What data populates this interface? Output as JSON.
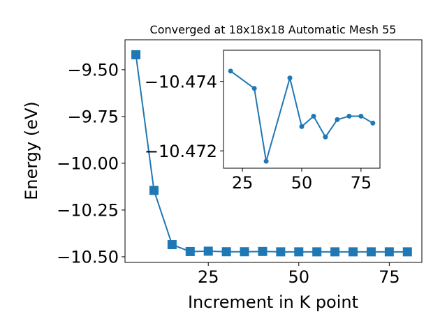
{
  "chart_data": [
    {
      "type": "line",
      "title": "Converged at 18x18x18 Automatic Mesh 55",
      "xlabel": "Increment in K point",
      "ylabel": "Energy (eV)",
      "xlim": [
        2,
        84
      ],
      "ylim": [
        -10.53,
        -9.34
      ],
      "xticks": [
        25,
        50,
        75
      ],
      "xtick_labels": [
        "25",
        "50",
        "75"
      ],
      "yticks": [
        -9.5,
        -9.75,
        -10.0,
        -10.25,
        -10.5
      ],
      "ytick_labels": [
        "−9.50",
        "−9.75",
        "−10.00",
        "−10.25",
        "−10.50"
      ],
      "marker": "square",
      "color": "#1f77b4",
      "grid": false,
      "series": [
        {
          "x": [
            5,
            10,
            15,
            20,
            25,
            30,
            35,
            40,
            45,
            50,
            55,
            60,
            65,
            70,
            75,
            80
          ],
          "values": [
            -9.42,
            -10.145,
            -10.435,
            -10.472,
            -10.47,
            -10.473,
            -10.473,
            -10.4715,
            -10.4735,
            -10.4735,
            -10.4735,
            -10.4735,
            -10.4735,
            -10.4735,
            -10.4735,
            -10.4735
          ]
        }
      ]
    },
    {
      "type": "line",
      "title": "",
      "xlabel": "",
      "ylabel": "",
      "xlim": [
        17,
        83
      ],
      "ylim": [
        -10.4715,
        -10.4749
      ],
      "xticks": [
        25,
        50,
        75
      ],
      "xtick_labels": [
        "25",
        "50",
        "75"
      ],
      "yticks": [
        -10.474,
        -10.472
      ],
      "ytick_labels": [
        "−10.474",
        "−10.472"
      ],
      "marker": "circle",
      "color": "#1f77b4",
      "grid": false,
      "series": [
        {
          "x": [
            20,
            30,
            35,
            45,
            50,
            55,
            60,
            65,
            70,
            75,
            80
          ],
          "values": [
            -10.4743,
            -10.4738,
            -10.4717,
            -10.4741,
            -10.4727,
            -10.473,
            -10.4724,
            -10.4729,
            -10.473,
            -10.473,
            -10.4728
          ]
        }
      ]
    }
  ]
}
